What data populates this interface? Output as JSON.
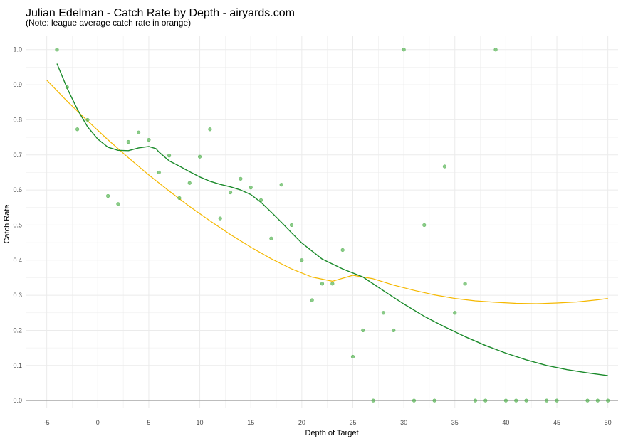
{
  "chart_data": {
    "type": "scatter",
    "title": "Julian Edelman - Catch Rate by Depth - airyards.com",
    "subtitle": "(Note: league average catch rate in orange)",
    "xlabel": "Depth of Target",
    "ylabel": "Catch Rate",
    "xlim": [
      -7,
      51
    ],
    "ylim": [
      -0.02,
      1.04
    ],
    "x_ticks": [
      -5,
      0,
      5,
      10,
      15,
      20,
      25,
      30,
      35,
      40,
      45,
      50
    ],
    "x_tick_labels": [
      "-5",
      "0",
      "5",
      "10",
      "15",
      "20",
      "25",
      "30",
      "35",
      "40",
      "45",
      "50"
    ],
    "y_ticks": [
      0.0,
      0.1,
      0.2,
      0.3,
      0.4,
      0.5,
      0.6,
      0.7,
      0.8,
      0.9,
      1.0
    ],
    "y_tick_labels": [
      "0.0",
      "0.1",
      "0.2",
      "0.3",
      "0.4",
      "0.5",
      "0.6",
      "0.7",
      "0.8",
      "0.9",
      "1.0"
    ],
    "grid": true,
    "colors": {
      "points": "#4daf4a",
      "player_trend": "#1a8a2a",
      "league_trend": "#f5b800",
      "baseline": "#999999",
      "grid": "#ebebeb"
    },
    "points": [
      {
        "x": -4,
        "y": 1.0
      },
      {
        "x": -3,
        "y": 0.893
      },
      {
        "x": -2,
        "y": 0.773
      },
      {
        "x": -1,
        "y": 0.8
      },
      {
        "x": 1,
        "y": 0.583
      },
      {
        "x": 2,
        "y": 0.56
      },
      {
        "x": 3,
        "y": 0.737
      },
      {
        "x": 4,
        "y": 0.764
      },
      {
        "x": 5,
        "y": 0.743
      },
      {
        "x": 6,
        "y": 0.65
      },
      {
        "x": 7,
        "y": 0.698
      },
      {
        "x": 8,
        "y": 0.577
      },
      {
        "x": 9,
        "y": 0.62
      },
      {
        "x": 10,
        "y": 0.695
      },
      {
        "x": 11,
        "y": 0.773
      },
      {
        "x": 12,
        "y": 0.519
      },
      {
        "x": 13,
        "y": 0.593
      },
      {
        "x": 14,
        "y": 0.632
      },
      {
        "x": 15,
        "y": 0.607
      },
      {
        "x": 16,
        "y": 0.571
      },
      {
        "x": 17,
        "y": 0.462
      },
      {
        "x": 18,
        "y": 0.615
      },
      {
        "x": 19,
        "y": 0.5
      },
      {
        "x": 20,
        "y": 0.4
      },
      {
        "x": 21,
        "y": 0.286
      },
      {
        "x": 22,
        "y": 0.333
      },
      {
        "x": 23,
        "y": 0.333
      },
      {
        "x": 24,
        "y": 0.429
      },
      {
        "x": 25,
        "y": 0.125
      },
      {
        "x": 26,
        "y": 0.2
      },
      {
        "x": 27,
        "y": 0.0
      },
      {
        "x": 28,
        "y": 0.25
      },
      {
        "x": 29,
        "y": 0.2
      },
      {
        "x": 30,
        "y": 1.0
      },
      {
        "x": 31,
        "y": 0.0
      },
      {
        "x": 32,
        "y": 0.5
      },
      {
        "x": 33,
        "y": 0.0
      },
      {
        "x": 34,
        "y": 0.667
      },
      {
        "x": 35,
        "y": 0.25
      },
      {
        "x": 36,
        "y": 0.333
      },
      {
        "x": 37,
        "y": 0.0
      },
      {
        "x": 38,
        "y": 0.0
      },
      {
        "x": 39,
        "y": 1.0
      },
      {
        "x": 40,
        "y": 0.0
      },
      {
        "x": 41,
        "y": 0.0
      },
      {
        "x": 42,
        "y": 0.0
      },
      {
        "x": 44,
        "y": 0.0
      },
      {
        "x": 45,
        "y": 0.0
      },
      {
        "x": 48,
        "y": 0.0
      },
      {
        "x": 49,
        "y": 0.0
      },
      {
        "x": 50,
        "y": 0.0
      }
    ],
    "player_trend": [
      {
        "x": -4,
        "y": 0.96
      },
      {
        "x": -3,
        "y": 0.89
      },
      {
        "x": -2,
        "y": 0.83
      },
      {
        "x": -1,
        "y": 0.78
      },
      {
        "x": 0,
        "y": 0.745
      },
      {
        "x": 1,
        "y": 0.722
      },
      {
        "x": 2,
        "y": 0.713
      },
      {
        "x": 3,
        "y": 0.712
      },
      {
        "x": 4,
        "y": 0.72
      },
      {
        "x": 5,
        "y": 0.724
      },
      {
        "x": 5.7,
        "y": 0.718
      },
      {
        "x": 6,
        "y": 0.708
      },
      {
        "x": 7,
        "y": 0.683
      },
      {
        "x": 8,
        "y": 0.668
      },
      {
        "x": 9,
        "y": 0.652
      },
      {
        "x": 10,
        "y": 0.637
      },
      {
        "x": 11,
        "y": 0.625
      },
      {
        "x": 12,
        "y": 0.616
      },
      {
        "x": 13,
        "y": 0.609
      },
      {
        "x": 14,
        "y": 0.6
      },
      {
        "x": 15,
        "y": 0.587
      },
      {
        "x": 16,
        "y": 0.565
      },
      {
        "x": 17,
        "y": 0.537
      },
      {
        "x": 18,
        "y": 0.508
      },
      {
        "x": 19,
        "y": 0.478
      },
      {
        "x": 20,
        "y": 0.449
      },
      {
        "x": 22,
        "y": 0.403
      },
      {
        "x": 24,
        "y": 0.375
      },
      {
        "x": 26,
        "y": 0.352
      },
      {
        "x": 28,
        "y": 0.313
      },
      {
        "x": 30,
        "y": 0.275
      },
      {
        "x": 32,
        "y": 0.24
      },
      {
        "x": 34,
        "y": 0.21
      },
      {
        "x": 36,
        "y": 0.182
      },
      {
        "x": 38,
        "y": 0.157
      },
      {
        "x": 40,
        "y": 0.135
      },
      {
        "x": 42,
        "y": 0.116
      },
      {
        "x": 44,
        "y": 0.1
      },
      {
        "x": 46,
        "y": 0.088
      },
      {
        "x": 48,
        "y": 0.079
      },
      {
        "x": 50,
        "y": 0.071
      }
    ],
    "league_trend": [
      {
        "x": -5,
        "y": 0.913
      },
      {
        "x": -3,
        "y": 0.853
      },
      {
        "x": -1,
        "y": 0.797
      },
      {
        "x": 1,
        "y": 0.743
      },
      {
        "x": 3,
        "y": 0.692
      },
      {
        "x": 5,
        "y": 0.643
      },
      {
        "x": 7,
        "y": 0.597
      },
      {
        "x": 9,
        "y": 0.553
      },
      {
        "x": 11,
        "y": 0.512
      },
      {
        "x": 13,
        "y": 0.473
      },
      {
        "x": 15,
        "y": 0.437
      },
      {
        "x": 17,
        "y": 0.404
      },
      {
        "x": 19,
        "y": 0.375
      },
      {
        "x": 21,
        "y": 0.352
      },
      {
        "x": 23,
        "y": 0.34
      },
      {
        "x": 25,
        "y": 0.357
      },
      {
        "x": 27,
        "y": 0.347
      },
      {
        "x": 29,
        "y": 0.329
      },
      {
        "x": 31,
        "y": 0.314
      },
      {
        "x": 33,
        "y": 0.301
      },
      {
        "x": 35,
        "y": 0.291
      },
      {
        "x": 37,
        "y": 0.284
      },
      {
        "x": 39,
        "y": 0.28
      },
      {
        "x": 41,
        "y": 0.277
      },
      {
        "x": 43,
        "y": 0.276
      },
      {
        "x": 45,
        "y": 0.278
      },
      {
        "x": 47,
        "y": 0.281
      },
      {
        "x": 49,
        "y": 0.287
      },
      {
        "x": 50,
        "y": 0.291
      }
    ]
  }
}
